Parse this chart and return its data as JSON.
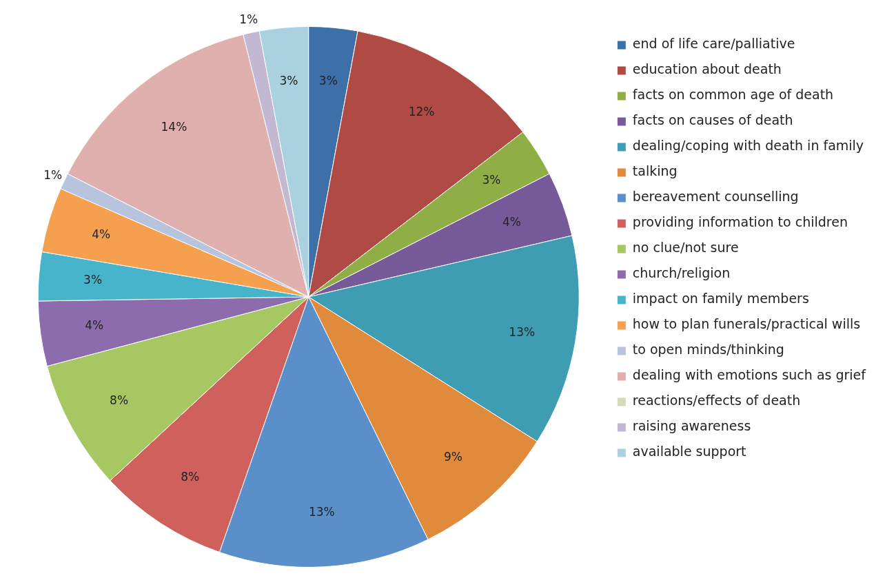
{
  "chart_data": {
    "type": "pie",
    "categories": [
      "end of life care/palliative",
      "education about death",
      "facts on common age of death",
      "facts on causes of death",
      "dealing/coping with death in family",
      "talking",
      "bereavement counselling",
      "providing information to children",
      "no clue/not sure",
      "church/religion",
      "impact on family members",
      "how to plan funerals/practical wills",
      "to open minds/thinking",
      "dealing with emotions such as grief",
      "reactions/effects of death",
      "raising awareness",
      "available support"
    ],
    "values": [
      3,
      12,
      3,
      4,
      13,
      9,
      13,
      8,
      8,
      4,
      3,
      4,
      1,
      14,
      0,
      1,
      3
    ],
    "value_labels": [
      "3%",
      "12%",
      "3%",
      "4%",
      "13%",
      "9%",
      "13%",
      "8%",
      "8%",
      "4%",
      "3%",
      "4%",
      "1%",
      "14%",
      null,
      "1%",
      "3%"
    ],
    "colors": [
      "#3d6fa8",
      "#b04a45",
      "#8fae45",
      "#775a99",
      "#3f9db3",
      "#e08a3c",
      "#5b8fc9",
      "#d0605b",
      "#a6c761",
      "#8c6cad",
      "#46b5cc",
      "#f5a04f",
      "#b8c4dd",
      "#e0b0ae",
      "#d1dcb8",
      "#c3b8d3",
      "#a9d1e0"
    ],
    "legend": "right"
  }
}
